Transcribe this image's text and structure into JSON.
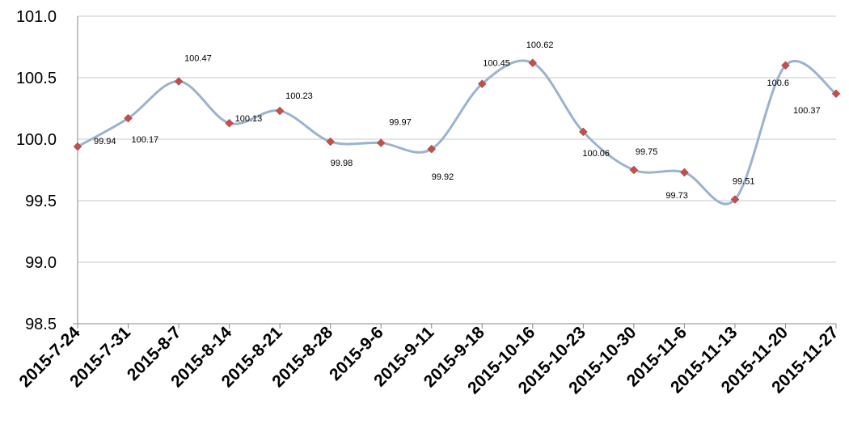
{
  "chart_data": {
    "type": "line",
    "title": "",
    "xlabel": "",
    "ylabel": "",
    "ylim": [
      98.5,
      101.0
    ],
    "y_ticks": [
      "98.5",
      "99.0",
      "99.5",
      "100.0",
      "100.5",
      "101.0"
    ],
    "grid": true,
    "smooth": true,
    "categories": [
      "2015-7-24",
      "2015-7-31",
      "2015-8-7",
      "2015-8-14",
      "2015-8-21",
      "2015-8-28",
      "2015-9-6",
      "2015-9-11",
      "2015-9-18",
      "2015-10-16",
      "2015-10-23",
      "2015-10-30",
      "2015-11-6",
      "2015-11-13",
      "2015-11-20",
      "2015-11-27"
    ],
    "series": [
      {
        "values": [
          99.94,
          100.17,
          100.47,
          100.13,
          100.23,
          99.98,
          99.97,
          99.92,
          100.45,
          100.62,
          100.06,
          99.75,
          99.73,
          99.51,
          100.6,
          100.37
        ],
        "labels": [
          "99.94",
          "100.17",
          "100.47",
          "100.13",
          "100.23",
          "99.98",
          "99.97",
          "99.92",
          "100.45",
          "100.62",
          "100.06",
          "99.75",
          "99.73",
          "99.51",
          "100.6",
          "100.37"
        ],
        "line_color": "#9BB3CC",
        "marker_color": "#C0504D"
      }
    ]
  }
}
